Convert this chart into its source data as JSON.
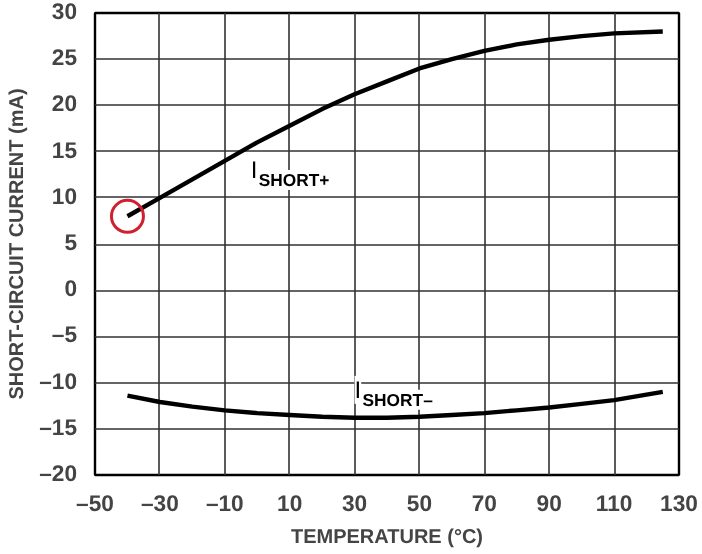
{
  "chart_data": {
    "type": "line",
    "xlabel": "TEMPERATURE (°C)",
    "ylabel": "SHORT-CIRCUIT CURRENT (mA)",
    "xlim": [
      -50,
      130
    ],
    "ylim": [
      -20,
      30
    ],
    "xticks": [
      {
        "value": -50,
        "label": "–50"
      },
      {
        "value": -30,
        "label": "–30"
      },
      {
        "value": -10,
        "label": "–10"
      },
      10,
      30,
      50,
      70,
      90,
      110,
      130
    ],
    "yticks": [
      {
        "value": -20,
        "label": "–20"
      },
      {
        "value": -15,
        "label": "–15"
      },
      {
        "value": -10,
        "label": "–10"
      },
      {
        "value": -5,
        "label": "–5"
      },
      0,
      5,
      10,
      15,
      20,
      25,
      30
    ],
    "grid": true,
    "series": [
      {
        "name": "I$_{SHORT+}$",
        "color": "#000000",
        "x": [
          -40,
          -30,
          -20,
          -10,
          0,
          10,
          20,
          30,
          40,
          50,
          60,
          70,
          80,
          90,
          100,
          110,
          125
        ],
        "values": [
          8,
          10,
          12,
          14,
          16,
          17.8,
          19.6,
          21.2,
          22.6,
          24,
          25,
          25.9,
          26.6,
          27.1,
          27.5,
          27.8,
          28
        ]
      },
      {
        "name": "I$_{SHORT–}$",
        "color": "#000000",
        "x": [
          -40,
          -30,
          -20,
          -10,
          0,
          10,
          20,
          30,
          40,
          50,
          60,
          70,
          80,
          90,
          100,
          110,
          125
        ],
        "values": [
          -11.4,
          -12.1,
          -12.6,
          -13,
          -13.3,
          -13.5,
          -13.7,
          -13.8,
          -13.8,
          -13.7,
          -13.5,
          -13.3,
          -13,
          -12.7,
          -12.3,
          -11.9,
          -11
        ]
      }
    ]
  }
}
